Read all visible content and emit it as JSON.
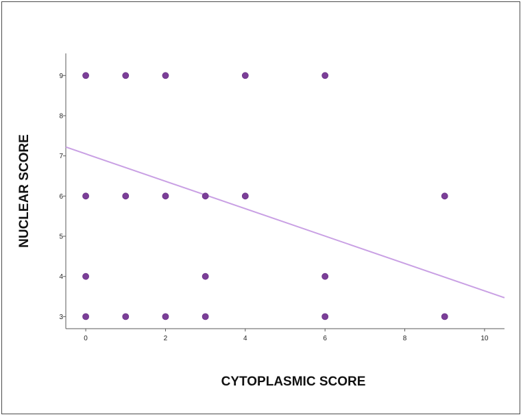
{
  "chart_data": {
    "type": "scatter",
    "title": "",
    "xlabel": "CYTOPLASMIC SCORE",
    "ylabel": "NUCLEAR SCORE",
    "xlim": [
      -0.5,
      10.5
    ],
    "ylim": [
      2.7,
      9.55
    ],
    "x_ticks": [
      0,
      2,
      4,
      6,
      8,
      10
    ],
    "y_ticks": [
      3,
      4,
      5,
      6,
      7,
      8,
      9
    ],
    "grid": false,
    "legend": "none",
    "marker_color": "#7b3f98",
    "fit_line_color": "#c9a0e4",
    "points": [
      {
        "x": 0,
        "y": 9
      },
      {
        "x": 1,
        "y": 9
      },
      {
        "x": 2,
        "y": 9
      },
      {
        "x": 4,
        "y": 9
      },
      {
        "x": 6,
        "y": 9
      },
      {
        "x": 0,
        "y": 6
      },
      {
        "x": 1,
        "y": 6
      },
      {
        "x": 2,
        "y": 6
      },
      {
        "x": 3,
        "y": 6
      },
      {
        "x": 4,
        "y": 6
      },
      {
        "x": 9,
        "y": 6
      },
      {
        "x": 0,
        "y": 4
      },
      {
        "x": 3,
        "y": 4
      },
      {
        "x": 6,
        "y": 4
      },
      {
        "x": 0,
        "y": 3
      },
      {
        "x": 1,
        "y": 3
      },
      {
        "x": 2,
        "y": 3
      },
      {
        "x": 3,
        "y": 3
      },
      {
        "x": 6,
        "y": 3
      },
      {
        "x": 9,
        "y": 3
      }
    ],
    "fit_line": {
      "x": [
        -0.5,
        10.5
      ],
      "y": [
        7.22,
        3.47
      ]
    }
  }
}
